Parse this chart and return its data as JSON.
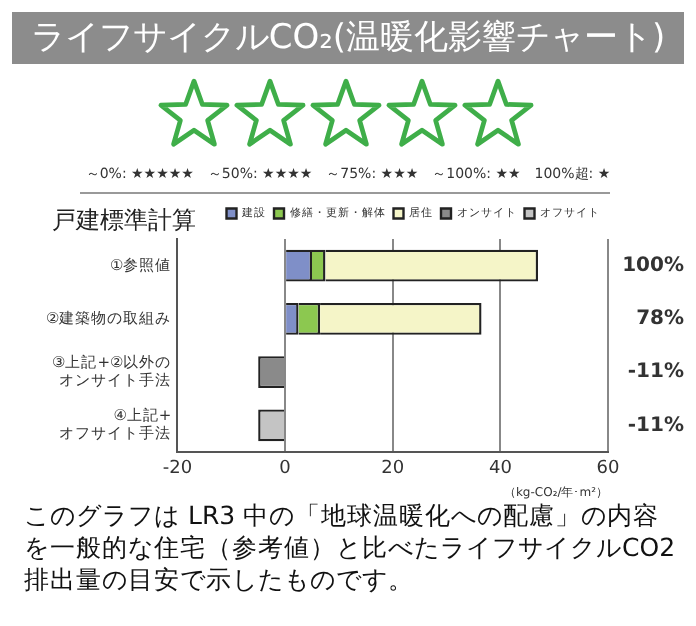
{
  "chart_data": {
    "type": "bar",
    "orientation": "horizontal",
    "stacked": true,
    "title": "ライフサイクルCO₂(温暖化影響チャート)",
    "subtitle": "戸建標準計算",
    "xlabel": "（kg-CO₂/年･m²）",
    "categories": [
      "①参照値",
      "②建築物の取組み",
      "③上記+②以外のオンサイト手法",
      "④上記+オフサイト手法"
    ],
    "series": [
      {
        "name": "建設",
        "color": "#7f8fc8",
        "values": [
          5,
          2.5,
          null,
          null
        ]
      },
      {
        "name": "修繕・更新・解体",
        "color": "#8cc850",
        "values": [
          2.5,
          4,
          null,
          null
        ]
      },
      {
        "name": "居住",
        "color": "#f5f5c8",
        "values": [
          39.5,
          30,
          null,
          null
        ]
      },
      {
        "name": "オンサイト",
        "color": "#8a8a8a",
        "values": [
          null,
          null,
          -5,
          null
        ]
      },
      {
        "name": "オフサイト",
        "color": "#c4c4c4",
        "values": [
          null,
          null,
          null,
          -5
        ]
      }
    ],
    "xlim": [
      -20,
      60
    ],
    "xticks": [
      -20,
      0,
      20,
      40,
      60
    ],
    "grid": "x",
    "legend": "top right",
    "annotations": [
      "100%",
      "78%",
      "-11%",
      "-11%",
      "～0%: ★★★★★　～50%: ★★★★　～75%: ★★★　～100%: ★★　100%超: ★",
      "このグラフは LR3 中の「地球温暖化への配慮」の内容を一般的な住宅（参考値）と比べたライフサイクルCO2 排出量の目安で示したものです。"
    ]
  }
}
